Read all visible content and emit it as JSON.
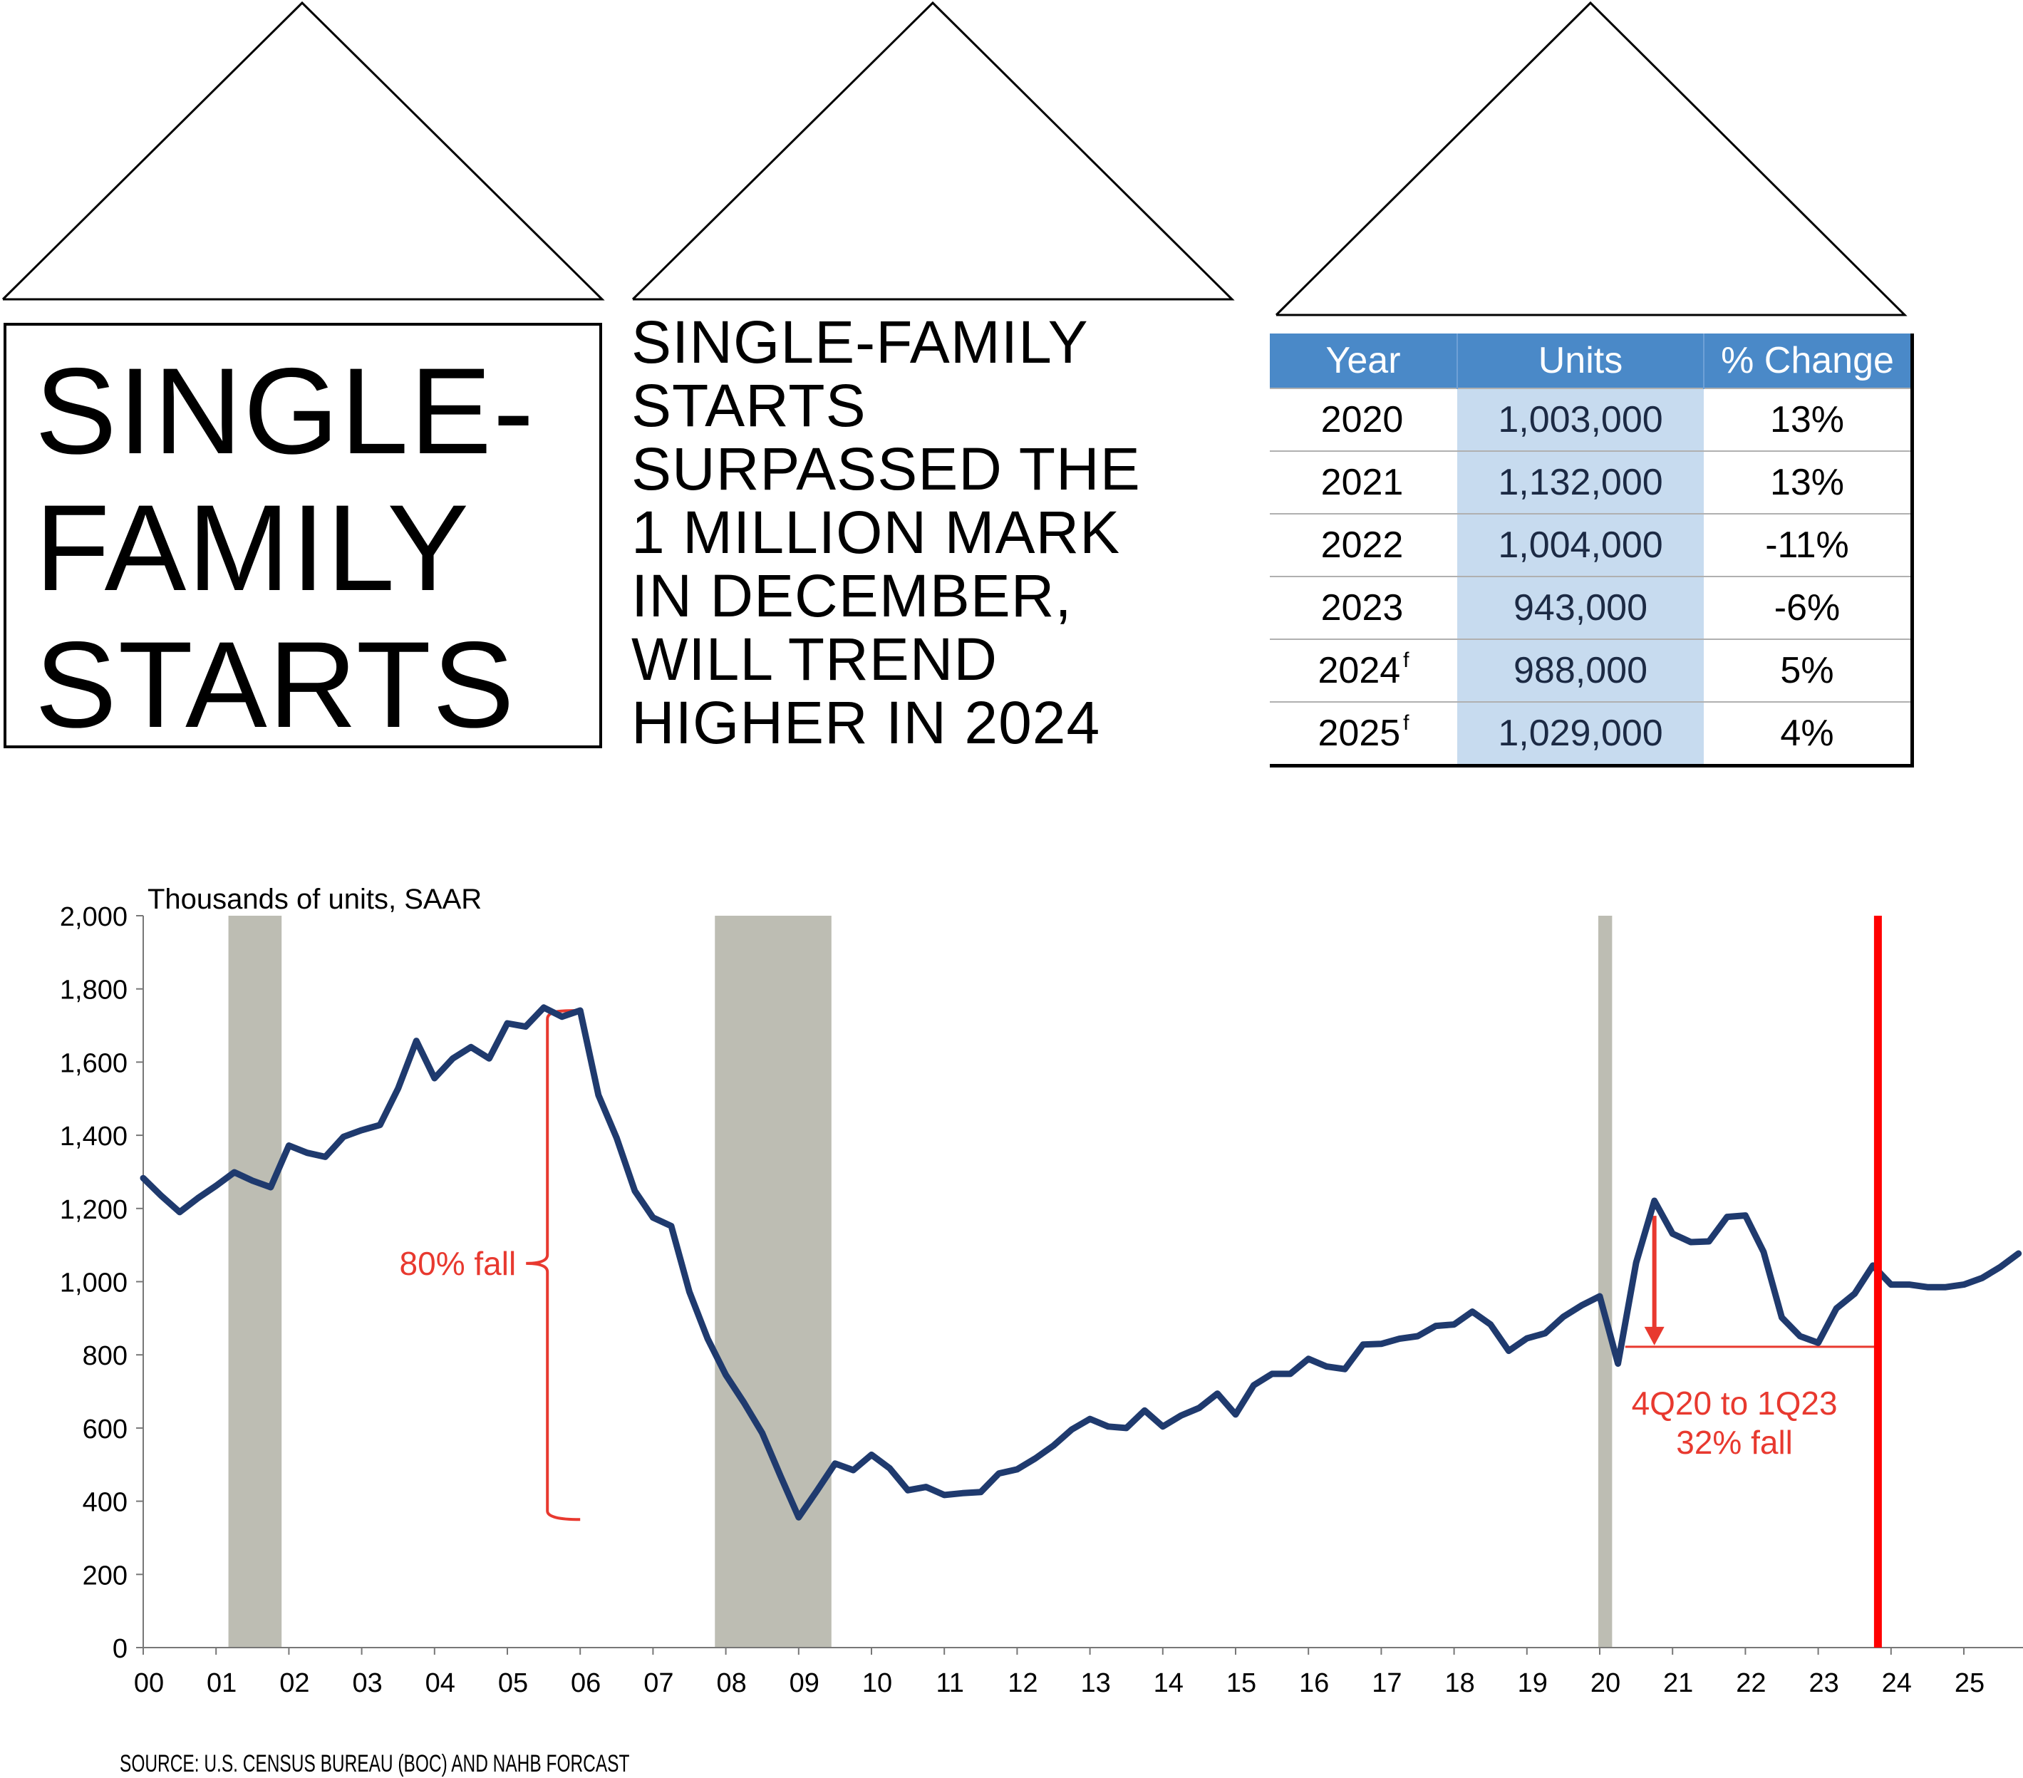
{
  "title_box": {
    "lines": [
      "SINGLE-",
      "FAMILY",
      "STARTS"
    ]
  },
  "headline": {
    "lines": [
      "SINGLE-FAMILY",
      "STARTS",
      "SURPASSED THE",
      "1 MILLION MARK",
      "IN DECEMBER,",
      "WILL TREND",
      "HIGHER IN 2024"
    ]
  },
  "table": {
    "headers": [
      "Year",
      "Units",
      "% Change"
    ],
    "rows": [
      {
        "year": "2020",
        "sup": "",
        "units": "1,003,000",
        "change": "13%"
      },
      {
        "year": "2021",
        "sup": "",
        "units": "1,132,000",
        "change": "13%"
      },
      {
        "year": "2022",
        "sup": "",
        "units": "1,004,000",
        "change": "-11%"
      },
      {
        "year": "2023",
        "sup": "",
        "units": "943,000",
        "change": "-6%"
      },
      {
        "year": "2024",
        "sup": "f",
        "units": "988,000",
        "change": "5%"
      },
      {
        "year": "2025",
        "sup": "f",
        "units": "1,029,000",
        "change": "4%"
      }
    ]
  },
  "source": "SOURCE: U.S. CENSUS BUREAU (BOC) AND NAHB FORCAST",
  "colors": {
    "line": "#1f3a6e",
    "recession": "#bdbdb3",
    "forecast_line": "#ff0000",
    "annotation": "#e8392f",
    "table_header": "#4a89c8",
    "table_units_bg": "#c7dbef"
  },
  "chart_data": {
    "type": "line",
    "ylabel": "Thousands of units, SAAR",
    "ylim": [
      0,
      2000
    ],
    "yticks": [
      0,
      200,
      400,
      600,
      800,
      1000,
      1200,
      1400,
      1600,
      1800,
      2000
    ],
    "xlim": [
      2000,
      2025.85
    ],
    "xtick_labels": [
      "00",
      "01",
      "02",
      "03",
      "04",
      "05",
      "06",
      "07",
      "08",
      "09",
      "10",
      "11",
      "12",
      "13",
      "14",
      "15",
      "16",
      "17",
      "18",
      "19",
      "20",
      "21",
      "22",
      "23",
      "24",
      "25"
    ],
    "grid": false,
    "frequency": "quarterly",
    "start": "2000Q1",
    "values": [
      1283,
      1234,
      1190,
      1228,
      1262,
      1299,
      1276,
      1258,
      1372,
      1352,
      1341,
      1396,
      1414,
      1428,
      1528,
      1658,
      1556,
      1610,
      1641,
      1610,
      1706,
      1697,
      1749,
      1724,
      1741,
      1510,
      1393,
      1248,
      1175,
      1152,
      972,
      844,
      745,
      669,
      586,
      469,
      356,
      428,
      503,
      485,
      527,
      490,
      430,
      439,
      417,
      422,
      425,
      476,
      487,
      517,
      552,
      596,
      625,
      604,
      600,
      648,
      604,
      634,
      655,
      694,
      637,
      717,
      748,
      748,
      789,
      768,
      761,
      828,
      830,
      844,
      851,
      879,
      883,
      918,
      883,
      811,
      845,
      859,
      904,
      935,
      960,
      776,
      1052,
      1221,
      1131,
      1108,
      1110,
      1177,
      1181,
      1081,
      902,
      851,
      833,
      927,
      967,
      1044,
      992,
      992,
      985,
      985,
      992,
      1010,
      1040,
      1077
    ],
    "recessions": [
      [
        2001.17,
        2001.9
      ],
      [
        2007.85,
        2009.45
      ],
      [
        2019.98,
        2020.17
      ]
    ],
    "forecast_marker_x": 2023.82,
    "annotations": [
      {
        "text": "80% fall",
        "type": "brace",
        "x": 2005.55,
        "from": 1741,
        "to": 350
      },
      {
        "text": "4Q20 to 1Q23",
        "text2": "32% fall",
        "type": "arrow",
        "x": 2020.75,
        "from": 1180,
        "to": 822,
        "line_from": 2020.35,
        "line_to": 2023.8
      }
    ]
  }
}
